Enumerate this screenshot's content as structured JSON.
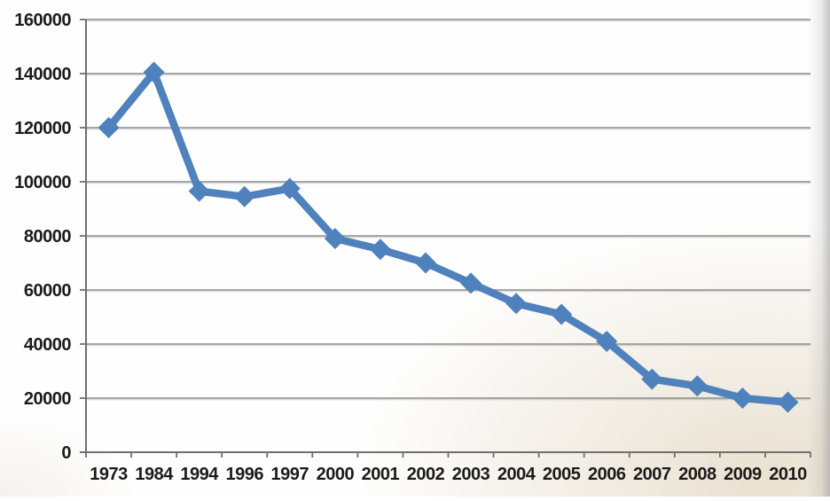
{
  "chart_data": {
    "type": "line",
    "title": "",
    "xlabel": "",
    "ylabel": "",
    "categories": [
      "1973",
      "1984",
      "1994",
      "1996",
      "1997",
      "2000",
      "2001",
      "2002",
      "2003",
      "2004",
      "2005",
      "2006",
      "2007",
      "2008",
      "2009",
      "2010"
    ],
    "series": [
      {
        "name": "series-1",
        "values": [
          120000,
          140500,
          96500,
          94500,
          97500,
          79000,
          75000,
          70000,
          62500,
          55000,
          51000,
          41000,
          27000,
          24500,
          20000,
          18500
        ]
      }
    ],
    "ylim": [
      0,
      160000
    ],
    "ytick_step": 20000,
    "ytick_labels": [
      "0",
      "20000",
      "40000",
      "60000",
      "80000",
      "100000",
      "120000",
      "140000",
      "160000"
    ],
    "grid": true,
    "legend_position": "none",
    "marker": "diamond",
    "colors": {
      "line": "#4f81bd",
      "marker": "#4f81bd",
      "gridline": "#8c8c8c",
      "axis": "#6f6f6f",
      "label": "#1b1b1b"
    }
  }
}
